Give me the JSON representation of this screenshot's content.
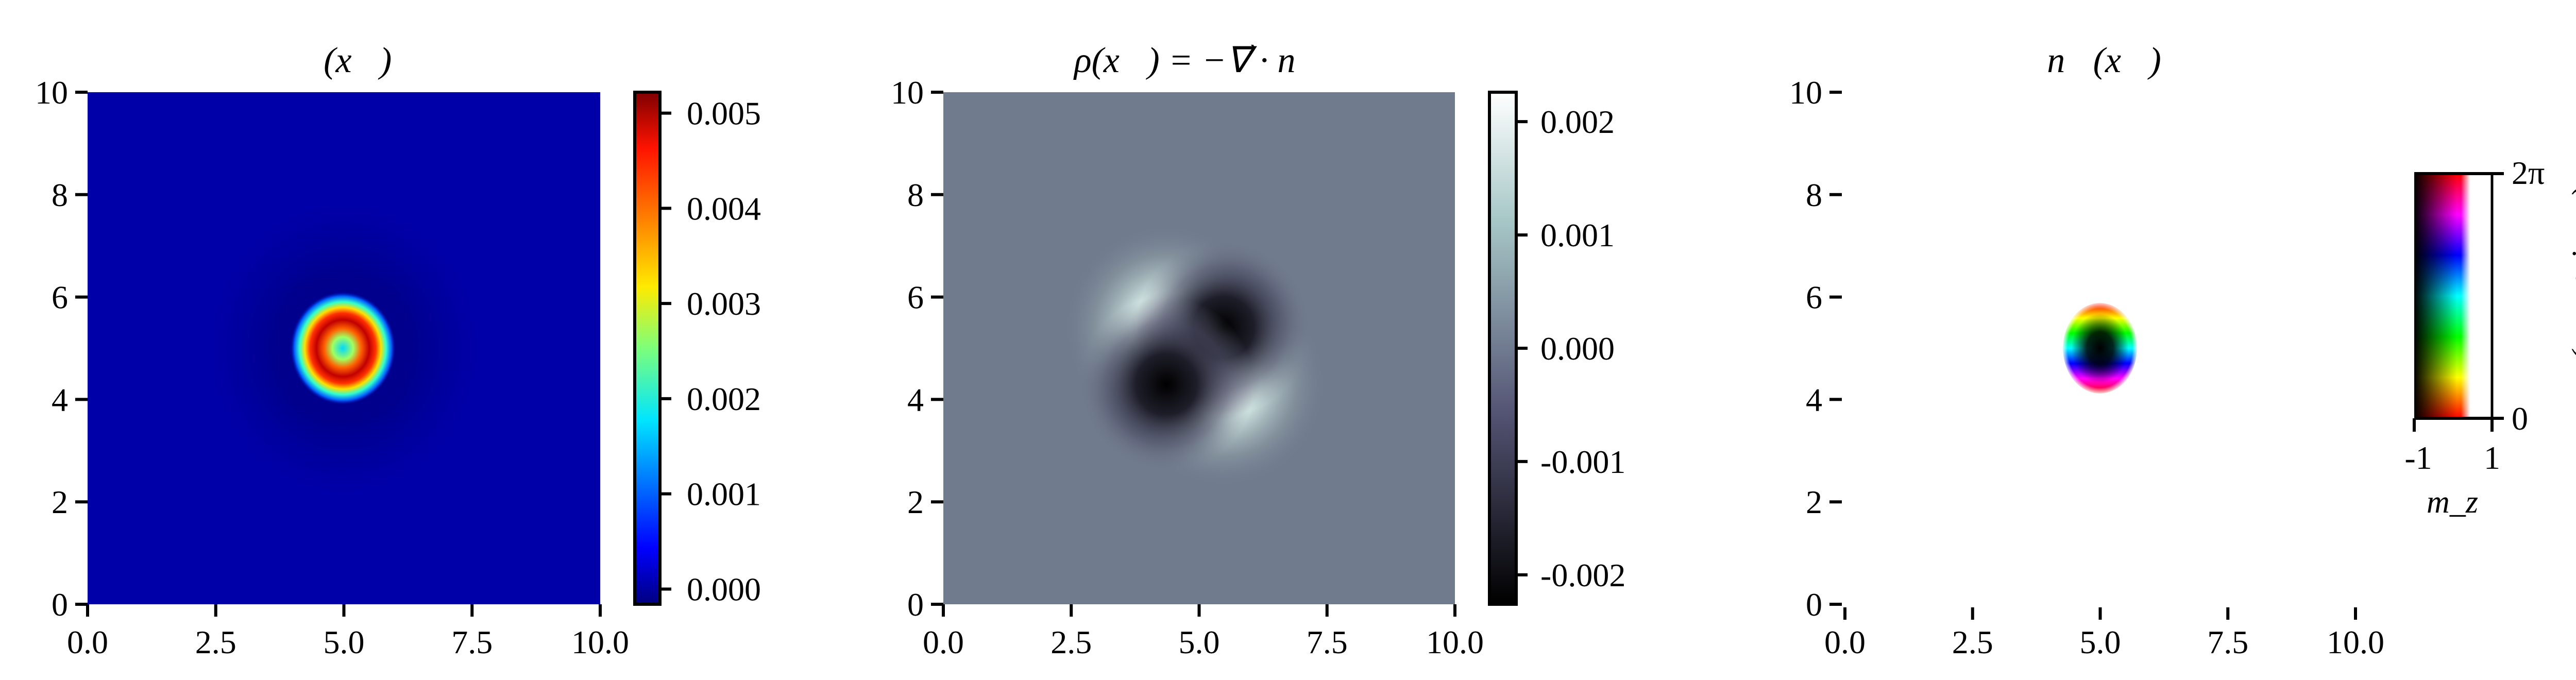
{
  "chart_data": [
    {
      "type": "heatmap",
      "title": "ℰ(x⃗)",
      "xlim": [
        0,
        10
      ],
      "ylim": [
        0,
        10
      ],
      "xticks": [
        "0.0",
        "2.5",
        "5.0",
        "7.5",
        "10.0"
      ],
      "yticks": [
        "0",
        "2",
        "4",
        "6",
        "8",
        "10"
      ],
      "colormap": "jet",
      "colorbar": {
        "range": [
          -0.00016,
          0.00522
        ],
        "ticks": [
          0.0,
          0.001,
          0.002,
          0.003,
          0.004,
          0.005
        ],
        "tick_labels": [
          "0.000",
          "0.001",
          "0.002",
          "0.003",
          "0.004",
          "0.005"
        ]
      },
      "features": {
        "ring_center": [
          5,
          5
        ],
        "ring_peak": 0.0052,
        "center_value": 0.0022,
        "background": 0.0
      }
    },
    {
      "type": "heatmap",
      "title": "ρ(x⃗) = −∇⃗ · n⃗",
      "xlim": [
        0,
        10
      ],
      "ylim": [
        0,
        10
      ],
      "xticks": [
        "0.0",
        "2.5",
        "5.0",
        "7.5",
        "10.0"
      ],
      "yticks": [
        "0",
        "2",
        "4",
        "6",
        "8",
        "10"
      ],
      "colormap": "bone",
      "colorbar": {
        "range": [
          -0.00226,
          0.00226
        ],
        "ticks": [
          -0.002,
          -0.001,
          0.0,
          0.001,
          0.002
        ],
        "tick_labels": [
          "-0.002",
          "-0.001",
          "0.000",
          "0.001",
          "0.002"
        ]
      },
      "features": {
        "positive_lobes": [
          [
            4.4,
            5.5
          ],
          [
            5.5,
            4.4
          ]
        ],
        "negative_lobes": [
          [
            5.5,
            5.5
          ],
          [
            4.4,
            4.4
          ]
        ],
        "background": 0.0
      }
    },
    {
      "type": "heatmap",
      "title": "n⃗(x⃗)",
      "xlim": [
        0,
        10
      ],
      "ylim": [
        0,
        10
      ],
      "xticks": [
        "0.0",
        "2.5",
        "5.0",
        "7.5",
        "10.0"
      ],
      "yticks": [
        "0",
        "2",
        "4",
        "6",
        "8",
        "10"
      ],
      "colormap": "hsv-phase / lightness-mz",
      "features": {
        "skyrmion_center": [
          5,
          5
        ],
        "radius": 0.6
      },
      "colorbar": {
        "xlabel": "m_z",
        "ylabel": "arg(m_x + im_y)",
        "xtick_labels": [
          "-1",
          "1"
        ],
        "ytick_labels": [
          "0",
          "2π"
        ]
      }
    }
  ],
  "colors": {
    "jet_background": "#0000a8",
    "bone_background": "#717b8e"
  }
}
